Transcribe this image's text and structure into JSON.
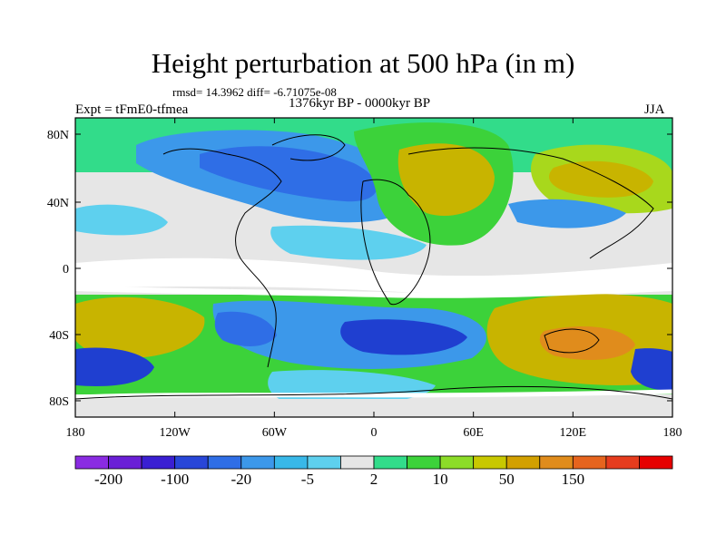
{
  "title": "Height perturbation at 500 hPa (in m)",
  "stats": "rmsd= 14.3962 diff= -6.71075e-08",
  "experiment": "Expt = tFmE0-tfmea",
  "period": "1376kyr BP - 0000kyr BP",
  "season": "JJA",
  "lat_ticks": [
    "80N",
    "40N",
    "0",
    "40S",
    "80S"
  ],
  "lon_ticks": [
    "180",
    "120W",
    "60W",
    "0",
    "60E",
    "120E",
    "180"
  ],
  "colorbar": {
    "colors": [
      "#8a2be2",
      "#6a1fd6",
      "#3a1fd2",
      "#2846d8",
      "#2f6ee6",
      "#3c98ea",
      "#38b8e8",
      "#5ed0ee",
      "#e6e6e6",
      "#32dc8a",
      "#3cd23a",
      "#8cdc28",
      "#c8c800",
      "#d2a000",
      "#e08c1c",
      "#e6641e",
      "#e63c1e",
      "#e60000"
    ],
    "labels": [
      "-200",
      "-100",
      "-20",
      "-5",
      "2",
      "10",
      "50",
      "150"
    ]
  },
  "field_colors": {
    "c_deep": "#1f3fd0",
    "c_blue": "#2f6ee6",
    "c_mid": "#3c98ea",
    "c_light": "#5ed0ee",
    "c_neutral": "#e6e6e6",
    "c_cyan": "#32dc8a",
    "c_green": "#3cd23a",
    "c_lime": "#a8d81c",
    "c_yellow": "#c8b400",
    "c_orange": "#e08c1c",
    "c_white": "#ffffff"
  }
}
